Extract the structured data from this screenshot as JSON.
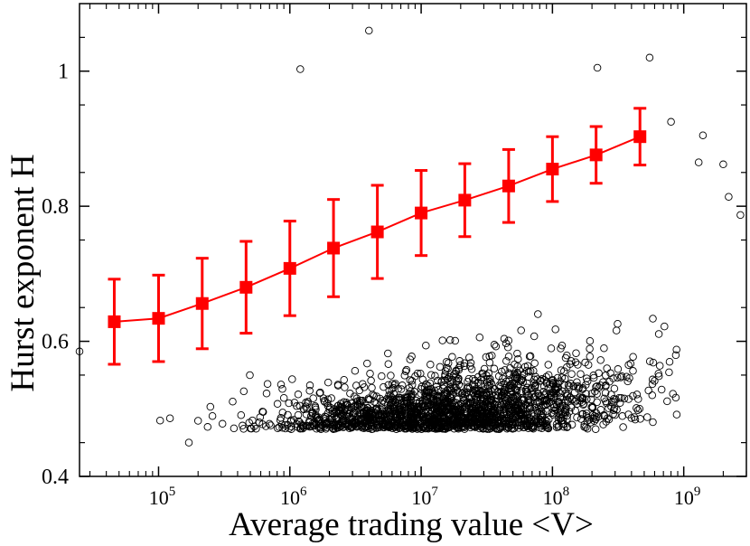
{
  "chart_data": {
    "type": "scatter",
    "xlabel": "Average trading value <V>",
    "ylabel": "Hurst exponent H",
    "x_scale": "log",
    "xlim": [
      25000,
      3000000000
    ],
    "ylim": [
      0.4,
      1.1
    ],
    "x_ticks": [
      {
        "value": 100000,
        "base": "10",
        "exp": "5"
      },
      {
        "value": 1000000,
        "base": "10",
        "exp": "6"
      },
      {
        "value": 10000000,
        "base": "10",
        "exp": "7"
      },
      {
        "value": 100000000,
        "base": "10",
        "exp": "8"
      },
      {
        "value": 1000000000,
        "base": "10",
        "exp": "9"
      }
    ],
    "y_ticks": [
      {
        "value": 0.4,
        "label": "0.4"
      },
      {
        "value": 0.6,
        "label": "0.6"
      },
      {
        "value": 0.8,
        "label": "0.8"
      },
      {
        "value": 1.0,
        "label": "1"
      }
    ],
    "grid": false,
    "scatter_series": {
      "marker": "open-circle",
      "color": "#000000",
      "count": 2000,
      "trend": {
        "intercept": 0.1175,
        "slope": 0.0454
      },
      "spread_sd": 0.048,
      "outliers": [
        {
          "x": 25000,
          "y": 0.585
        },
        {
          "x": 170000,
          "y": 0.45
        },
        {
          "x": 4000000,
          "y": 1.06
        },
        {
          "x": 1200000,
          "y": 1.003
        },
        {
          "x": 1300000000,
          "y": 0.865
        },
        {
          "x": 1400000000,
          "y": 0.905
        },
        {
          "x": 2000000000,
          "y": 0.862
        },
        {
          "x": 2200000000,
          "y": 0.814
        },
        {
          "x": 2700000000,
          "y": 0.787
        },
        {
          "x": 550000000,
          "y": 1.02
        },
        {
          "x": 220000000,
          "y": 1.005
        },
        {
          "x": 800000000,
          "y": 0.925
        }
      ]
    },
    "binned_series": {
      "color": "#ff0000",
      "marker": "filled-square",
      "points": [
        {
          "x": 46000,
          "y": 0.629,
          "err": 0.063
        },
        {
          "x": 100000,
          "y": 0.634,
          "err": 0.064
        },
        {
          "x": 215000,
          "y": 0.656,
          "err": 0.067
        },
        {
          "x": 464000,
          "y": 0.68,
          "err": 0.068
        },
        {
          "x": 1000000,
          "y": 0.708,
          "err": 0.07
        },
        {
          "x": 2150000,
          "y": 0.738,
          "err": 0.072
        },
        {
          "x": 4640000,
          "y": 0.762,
          "err": 0.069
        },
        {
          "x": 10000000,
          "y": 0.79,
          "err": 0.063
        },
        {
          "x": 21500000,
          "y": 0.809,
          "err": 0.054
        },
        {
          "x": 46400000,
          "y": 0.83,
          "err": 0.054
        },
        {
          "x": 100000000,
          "y": 0.855,
          "err": 0.048
        },
        {
          "x": 215000000,
          "y": 0.876,
          "err": 0.042
        },
        {
          "x": 464000000,
          "y": 0.903,
          "err": 0.042
        }
      ]
    }
  }
}
